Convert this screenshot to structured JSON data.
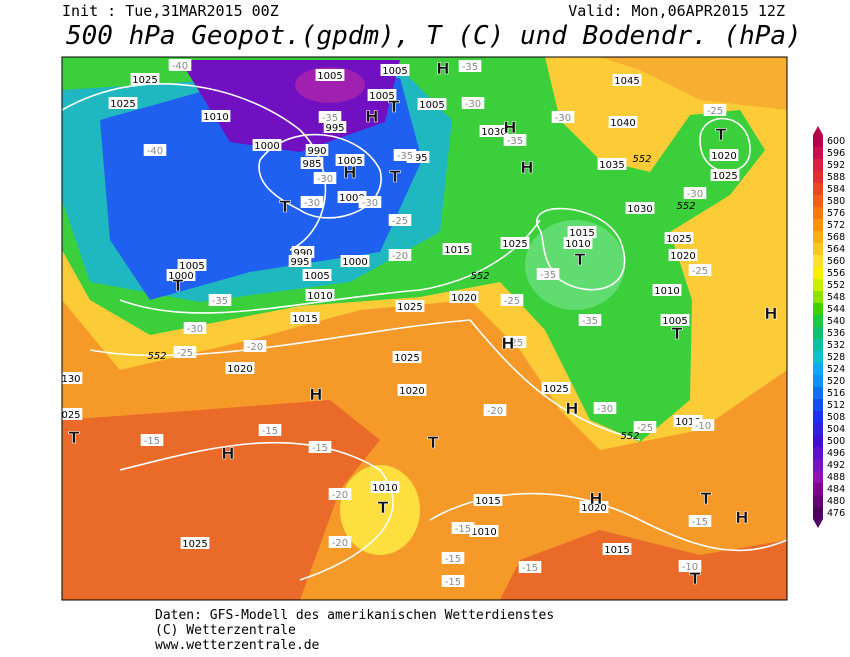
{
  "header": {
    "init": "Init : Tue,31MAR2015 00Z",
    "valid": "Valid: Mon,06APR2015 12Z",
    "title": "500 hPa Geopot.(gpdm), T (C) und Bodendr. (hPa)"
  },
  "map": {
    "isobar_labels": [
      "1025",
      "1025",
      "1010",
      "1000",
      "1005",
      "1005",
      "1005",
      "1005",
      "995",
      "990",
      "985",
      "1005",
      "995",
      "1000",
      "990",
      "995",
      "1005",
      "1000",
      "1010",
      "1015",
      "1015",
      "1005",
      "1000",
      "1025",
      "1020",
      "1025",
      "1020",
      "1020",
      "1030",
      "1035",
      "1040",
      "1045",
      "1030",
      "1025",
      "1015",
      "1010",
      "1025",
      "1020",
      "1010",
      "1005",
      "1020",
      "1025",
      "1025",
      "1010",
      "1010",
      "1015",
      "1020",
      "1010",
      "1015",
      "1025",
      "130",
      "025"
    ],
    "temperature_labels": [
      "-40",
      "-35",
      "-40",
      "-30",
      "-35",
      "-35",
      "-30",
      "-30",
      "-30",
      "-35",
      "-30",
      "-25",
      "-20",
      "-30",
      "-25",
      "-25",
      "-35",
      "-25",
      "-35",
      "-35",
      "-30",
      "-25",
      "-20",
      "-25",
      "-20",
      "-30",
      "-25",
      "-15",
      "-15",
      "-15",
      "-20",
      "-20",
      "-15",
      "-15",
      "-15",
      "-15",
      "-15",
      "-10",
      "-10"
    ],
    "thickness_labels": [
      "552",
      "552",
      "552",
      "552",
      "552"
    ],
    "pressure_centers": [
      "H",
      "H",
      "T",
      "T",
      "H",
      "T",
      "T",
      "H",
      "H",
      "T",
      "T",
      "T",
      "H",
      "H",
      "H",
      "H",
      "T",
      "H",
      "T",
      "T",
      "H",
      "T",
      "H",
      "T"
    ]
  },
  "legend": {
    "items": [
      {
        "value": 600,
        "color": "#b4004b"
      },
      {
        "value": 596,
        "color": "#c8104e"
      },
      {
        "value": 592,
        "color": "#d82040"
      },
      {
        "value": 588,
        "color": "#e03030"
      },
      {
        "value": 584,
        "color": "#e84a20"
      },
      {
        "value": 580,
        "color": "#f06018"
      },
      {
        "value": 576,
        "color": "#f47a10"
      },
      {
        "value": 572,
        "color": "#f89410"
      },
      {
        "value": 568,
        "color": "#fbae18"
      },
      {
        "value": 564,
        "color": "#fcc620"
      },
      {
        "value": 560,
        "color": "#fde030"
      },
      {
        "value": 556,
        "color": "#f8f000"
      },
      {
        "value": 552,
        "color": "#c8f000"
      },
      {
        "value": 548,
        "color": "#90e000"
      },
      {
        "value": 544,
        "color": "#40d000"
      },
      {
        "value": 540,
        "color": "#20c840"
      },
      {
        "value": 536,
        "color": "#10c070"
      },
      {
        "value": 532,
        "color": "#10c0a0"
      },
      {
        "value": 528,
        "color": "#10c0d0"
      },
      {
        "value": 524,
        "color": "#10a8f0"
      },
      {
        "value": 520,
        "color": "#1090f0"
      },
      {
        "value": 516,
        "color": "#1070f0"
      },
      {
        "value": 512,
        "color": "#1050f0"
      },
      {
        "value": 508,
        "color": "#2030f0"
      },
      {
        "value": 504,
        "color": "#3020e0"
      },
      {
        "value": 500,
        "color": "#4010d0"
      },
      {
        "value": 496,
        "color": "#6010c8"
      },
      {
        "value": 492,
        "color": "#7a10c0"
      },
      {
        "value": 488,
        "color": "#9010b0"
      },
      {
        "value": 484,
        "color": "#800090"
      },
      {
        "value": 480,
        "color": "#6a0078"
      },
      {
        "value": 476,
        "color": "#500060"
      }
    ]
  },
  "footer": {
    "lines": [
      "Daten: GFS-Modell des amerikanischen Wetterdienstes",
      "(C) Wetterzentrale",
      "www.wetterzentrale.de"
    ]
  }
}
